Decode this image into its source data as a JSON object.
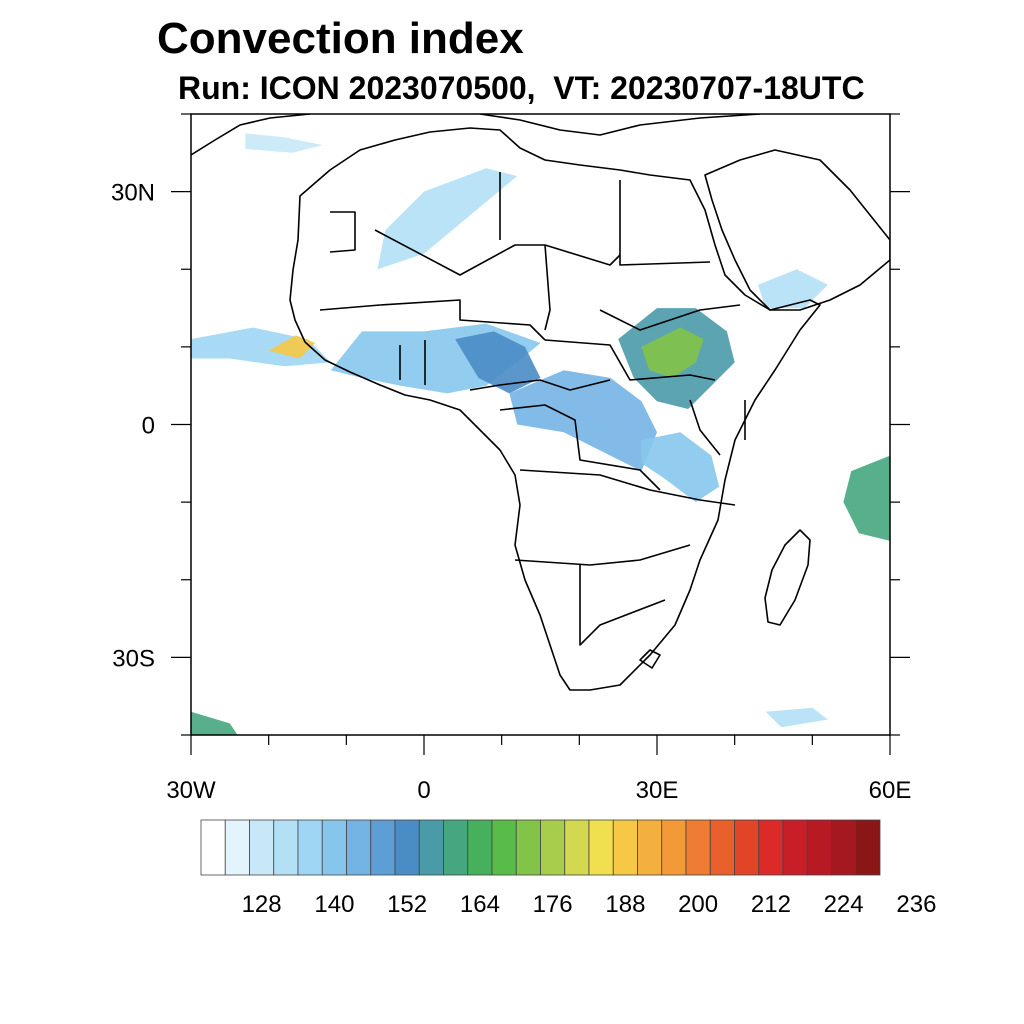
{
  "title": "Convection index",
  "subtitle": "Run: ICON 2023070500,  VT: 20230707-18UTC",
  "map": {
    "lon_range": [
      -30,
      60
    ],
    "lat_range": [
      -40,
      40
    ],
    "lat_ticks": [
      {
        "value": 30,
        "label": "30N"
      },
      {
        "value": 0,
        "label": "0"
      },
      {
        "value": -30,
        "label": "30S"
      }
    ],
    "lon_ticks": [
      {
        "value": -30,
        "label": "30W"
      },
      {
        "value": 0,
        "label": "0"
      },
      {
        "value": 30,
        "label": "30E"
      },
      {
        "value": 60,
        "label": "60E"
      }
    ],
    "minor_tick_step": 10
  },
  "colorbar": {
    "colors": [
      "#ffffff",
      "#e4f4fc",
      "#c8e8f8",
      "#b4e0f6",
      "#9ed6f4",
      "#86c6ec",
      "#74b4e4",
      "#5e9ed6",
      "#4a8cc6",
      "#4a9aa8",
      "#46a680",
      "#46b05c",
      "#58bc48",
      "#82c448",
      "#a8cc4c",
      "#d2d850",
      "#f0e050",
      "#f6c846",
      "#f4b03e",
      "#f29a38",
      "#ee7c32",
      "#e9602c",
      "#e24428",
      "#dc2a28",
      "#c81e28",
      "#b81a24",
      "#a41820",
      "#8a1616"
    ],
    "labels": [
      "128",
      "140",
      "152",
      "164",
      "176",
      "188",
      "200",
      "212",
      "224",
      "236"
    ],
    "label_boundary_index": [
      2,
      5,
      8,
      11,
      14,
      17,
      20,
      23,
      26
    ]
  },
  "convection_areas": [
    {
      "name": "atlantic-itcz-west",
      "level": 4,
      "points": [
        [
          -30,
          11
        ],
        [
          -22,
          12.5
        ],
        [
          -15,
          11
        ],
        [
          -12,
          8
        ],
        [
          -18,
          7.5
        ],
        [
          -25,
          8.5
        ],
        [
          -30,
          8.5
        ]
      ]
    },
    {
      "name": "guinea-core",
      "level": 17,
      "points": [
        [
          -20,
          9.5
        ],
        [
          -16.5,
          11.5
        ],
        [
          -14,
          10.5
        ],
        [
          -16,
          8.5
        ]
      ]
    },
    {
      "name": "west-africa-band",
      "level": 5,
      "points": [
        [
          -12,
          7
        ],
        [
          -8,
          6
        ],
        [
          -3,
          5
        ],
        [
          3,
          4
        ],
        [
          8,
          5
        ],
        [
          12,
          8
        ],
        [
          15,
          10.5
        ],
        [
          8,
          13
        ],
        [
          0,
          12
        ],
        [
          -8,
          12
        ]
      ]
    },
    {
      "name": "nigeria-cameroon",
      "level": 8,
      "points": [
        [
          4,
          11
        ],
        [
          9,
          12
        ],
        [
          13,
          10
        ],
        [
          15,
          6
        ],
        [
          11,
          4
        ],
        [
          7,
          6
        ]
      ]
    },
    {
      "name": "central-africa",
      "level": 6,
      "points": [
        [
          11,
          4
        ],
        [
          18,
          7
        ],
        [
          24,
          6
        ],
        [
          28,
          3
        ],
        [
          30,
          -1
        ],
        [
          28,
          -6
        ],
        [
          24,
          -4
        ],
        [
          18,
          -1
        ],
        [
          12,
          0
        ]
      ]
    },
    {
      "name": "ethiopia-sudan",
      "level": 9,
      "points": [
        [
          25,
          11
        ],
        [
          30,
          15
        ],
        [
          35,
          15
        ],
        [
          39,
          12
        ],
        [
          40,
          8
        ],
        [
          37,
          5
        ],
        [
          34,
          2
        ],
        [
          30,
          3
        ],
        [
          27,
          6
        ]
      ]
    },
    {
      "name": "ethiopia-core",
      "level": 13,
      "points": [
        [
          28,
          10
        ],
        [
          33,
          12.5
        ],
        [
          36,
          11
        ],
        [
          35,
          8
        ],
        [
          32,
          6
        ],
        [
          29,
          7
        ]
      ]
    },
    {
      "name": "east-africa-tail",
      "level": 5,
      "points": [
        [
          28,
          -2
        ],
        [
          33,
          -1
        ],
        [
          37,
          -4
        ],
        [
          38,
          -8
        ],
        [
          35,
          -10
        ],
        [
          31,
          -7
        ],
        [
          28,
          -5
        ]
      ]
    },
    {
      "name": "sahara-streak",
      "level": 3,
      "points": [
        [
          -5,
          25
        ],
        [
          0,
          30
        ],
        [
          8,
          33
        ],
        [
          12,
          32
        ],
        [
          6,
          27
        ],
        [
          0,
          22
        ],
        [
          -6,
          20
        ]
      ]
    },
    {
      "name": "north-streak",
      "level": 2,
      "points": [
        [
          -23,
          37.5
        ],
        [
          -18,
          37
        ],
        [
          -13,
          36
        ],
        [
          -17,
          35
        ],
        [
          -23,
          35.5
        ]
      ]
    },
    {
      "name": "madagascar-east",
      "level": 10,
      "points": [
        [
          55,
          -6
        ],
        [
          60,
          -4
        ],
        [
          60,
          -15
        ],
        [
          56,
          -14
        ],
        [
          54,
          -10
        ]
      ]
    },
    {
      "name": "sw-corner",
      "level": 10,
      "points": [
        [
          -30,
          -37
        ],
        [
          -25,
          -38.5
        ],
        [
          -24,
          -40
        ],
        [
          -30,
          -40
        ]
      ]
    },
    {
      "name": "south-streak",
      "level": 3,
      "points": [
        [
          44,
          -37
        ],
        [
          50,
          -36.5
        ],
        [
          52,
          -38
        ],
        [
          46,
          -39
        ]
      ]
    },
    {
      "name": "arabia-patches",
      "level": 3,
      "points": [
        [
          43,
          18
        ],
        [
          48,
          20
        ],
        [
          52,
          18
        ],
        [
          49,
          15
        ],
        [
          44,
          15
        ]
      ]
    }
  ]
}
